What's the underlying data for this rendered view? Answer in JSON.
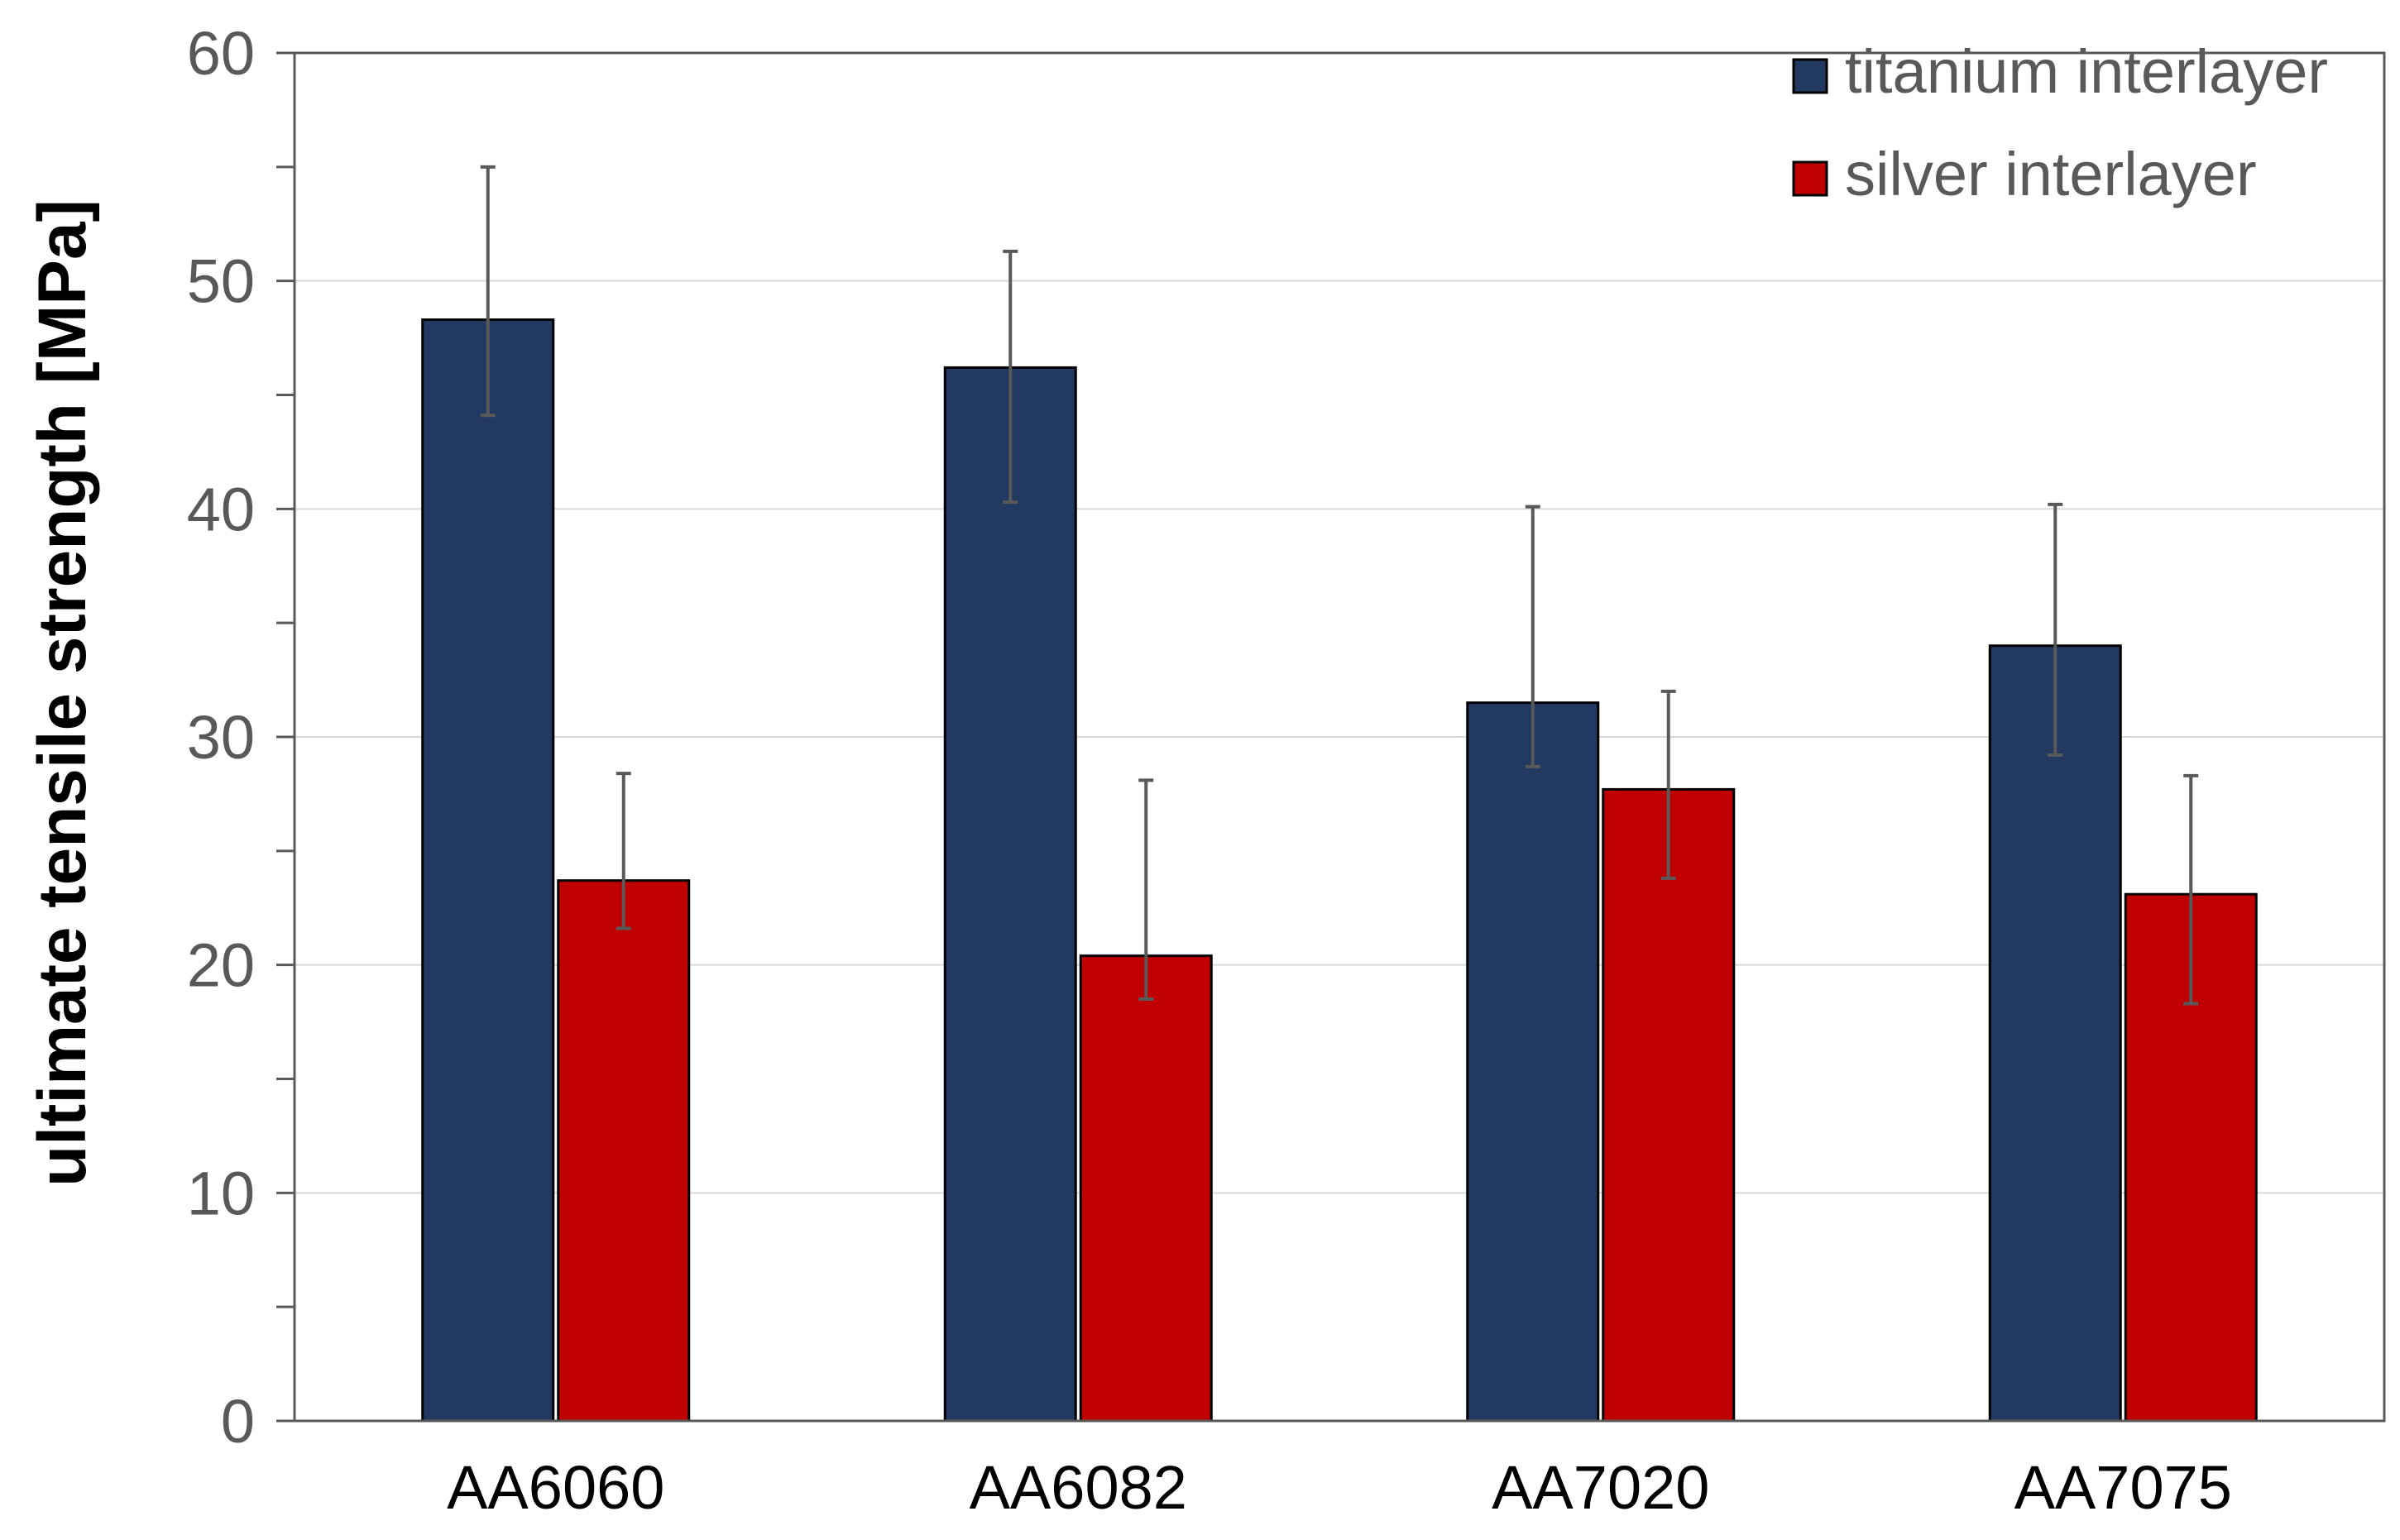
{
  "chart_data": {
    "type": "bar",
    "title": "",
    "xlabel": "",
    "ylabel": "ultimate tensile strength [MPa]",
    "ylim": [
      0,
      60
    ],
    "y_major_ticks": [
      0,
      10,
      20,
      30,
      40,
      50,
      60
    ],
    "y_minor_step": 5,
    "grid": true,
    "legend_position": "top-right",
    "categories": [
      "AA6060",
      "AA6082",
      "AA7020",
      "AA7075"
    ],
    "series": [
      {
        "name": "titanium interlayer",
        "color": "#223962",
        "values": [
          48.3,
          46.2,
          31.5,
          34.0
        ],
        "error_low": [
          44.1,
          40.3,
          28.7,
          29.2
        ],
        "error_high": [
          55.0,
          51.3,
          40.1,
          40.2
        ]
      },
      {
        "name": "silver interlayer",
        "color": "#c00000",
        "values": [
          23.7,
          20.4,
          27.7,
          23.1
        ],
        "error_low": [
          21.6,
          18.5,
          23.8,
          18.3
        ],
        "error_high": [
          28.4,
          28.1,
          32.0,
          28.3
        ]
      }
    ],
    "colors": {
      "axis": "#595959",
      "grid": "#d9d9d9",
      "error_bar": "#595959"
    }
  }
}
